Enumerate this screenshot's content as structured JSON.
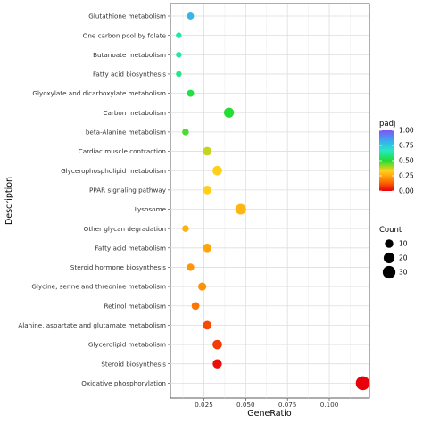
{
  "chart_data": {
    "type": "scatter",
    "xlabel": "GeneRatio",
    "ylabel": "Description",
    "xlim": [
      0.005,
      0.124
    ],
    "xticks": [
      0.025,
      0.05,
      0.075,
      0.1
    ],
    "xtick_labels": [
      "0.025",
      "0.050",
      "0.075",
      "0.100"
    ],
    "grid": true,
    "color_legend": {
      "title": "padj",
      "range": [
        0,
        1.0
      ],
      "ticks": [
        0.0,
        0.25,
        0.5,
        0.75,
        1.0
      ],
      "tick_labels": [
        "0.00",
        "0.25",
        "0.50",
        "0.75",
        "1.00"
      ],
      "colors": [
        "#e8000b",
        "#ff7a00",
        "#ffd21a",
        "#22dd33",
        "#27e8c5",
        "#3ba8f0",
        "#7f55f2"
      ]
    },
    "size_legend": {
      "title": "Count",
      "values": [
        10,
        20,
        30
      ],
      "labels": [
        "10",
        "20",
        "30"
      ]
    },
    "points": [
      {
        "term": "Glutathione metabolism",
        "gene_ratio": 0.017,
        "count": 6,
        "padj": 0.8
      },
      {
        "term": "One carbon pool by folate",
        "gene_ratio": 0.01,
        "count": 3,
        "padj": 0.63
      },
      {
        "term": "Butanoate metabolism",
        "gene_ratio": 0.01,
        "count": 3,
        "padj": 0.63
      },
      {
        "term": "Fatty acid biosynthesis",
        "gene_ratio": 0.01,
        "count": 3,
        "padj": 0.6
      },
      {
        "term": "Glyoxylate and dicarboxylate metabolism",
        "gene_ratio": 0.017,
        "count": 6,
        "padj": 0.52
      },
      {
        "term": "Carbon metabolism",
        "gene_ratio": 0.04,
        "count": 16,
        "padj": 0.5
      },
      {
        "term": "beta-Alanine metabolism",
        "gene_ratio": 0.014,
        "count": 5,
        "padj": 0.47
      },
      {
        "term": "Cardiac muscle contraction",
        "gene_ratio": 0.027,
        "count": 11,
        "padj": 0.38
      },
      {
        "term": "Glycerophospholipid metabolism",
        "gene_ratio": 0.033,
        "count": 14,
        "padj": 0.33
      },
      {
        "term": "PPAR signaling pathway",
        "gene_ratio": 0.027,
        "count": 11,
        "padj": 0.33
      },
      {
        "term": "Lysosome",
        "gene_ratio": 0.047,
        "count": 19,
        "padj": 0.28
      },
      {
        "term": "Other glycan degradation",
        "gene_ratio": 0.014,
        "count": 5,
        "padj": 0.27
      },
      {
        "term": "Fatty acid metabolism",
        "gene_ratio": 0.027,
        "count": 11,
        "padj": 0.25
      },
      {
        "term": "Steroid hormone biosynthesis",
        "gene_ratio": 0.017,
        "count": 7,
        "padj": 0.22
      },
      {
        "term": "Glycine, serine and threonine metabolism",
        "gene_ratio": 0.024,
        "count": 9,
        "padj": 0.21
      },
      {
        "term": "Retinol metabolism",
        "gene_ratio": 0.02,
        "count": 8,
        "padj": 0.16
      },
      {
        "term": "Alanine, aspartate and glutamate metabolism",
        "gene_ratio": 0.027,
        "count": 11,
        "padj": 0.1
      },
      {
        "term": "Glycerolipid metabolism",
        "gene_ratio": 0.033,
        "count": 14,
        "padj": 0.08
      },
      {
        "term": "Steroid biosynthesis",
        "gene_ratio": 0.033,
        "count": 13,
        "padj": 0.02
      },
      {
        "term": "Oxidative phosphorylation",
        "gene_ratio": 0.12,
        "count": 37,
        "padj": 0.0
      }
    ]
  }
}
